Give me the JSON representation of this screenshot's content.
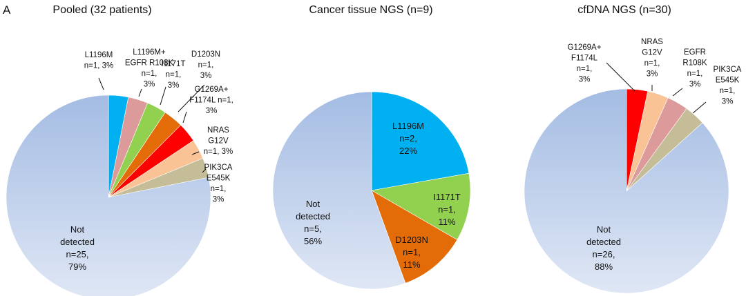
{
  "panel_label": "A",
  "colors": {
    "not_detected_top": "#a4bce3",
    "not_detected_bottom": "#dfe7f5",
    "L1196M": "#00b0f0",
    "L1196M_EGFR": "#dc9a9a",
    "I1171T": "#92d050",
    "D1203N": "#e36c09",
    "G1269A_F1174L": "#ff0000",
    "NRAS": "#f9c396",
    "PIK3CA": "#c4bd97",
    "EGFR": "#dc9a9a"
  },
  "chart_data": [
    {
      "type": "pie",
      "title": "Pooled (32 patients)",
      "total": 32,
      "slices": [
        {
          "name": "L1196M",
          "value": 1,
          "percent": 3,
          "color_key": "L1196M",
          "label_lines": [
            "L1196M",
            "n=1, 3%"
          ]
        },
        {
          "name": "L1196M+ EGFR R108K",
          "value": 1,
          "percent": 3,
          "color_key": "L1196M_EGFR",
          "label_lines": [
            "L1196M+",
            "EGFR R108K",
            "n=1,",
            "3%"
          ]
        },
        {
          "name": "I1171T",
          "value": 1,
          "percent": 3,
          "color_key": "I1171T",
          "label_lines": [
            "I1171T",
            "n=1,",
            "3%"
          ]
        },
        {
          "name": "D1203N",
          "value": 1,
          "percent": 3,
          "color_key": "D1203N",
          "label_lines": [
            "D1203N",
            "n=1,",
            "3%"
          ]
        },
        {
          "name": "G1269A+ F1174L",
          "value": 1,
          "percent": 3,
          "color_key": "G1269A_F1174L",
          "label_lines": [
            "G1269A+",
            "F1174L n=1,",
            "3%"
          ]
        },
        {
          "name": "NRAS G12V",
          "value": 1,
          "percent": 3,
          "color_key": "NRAS",
          "label_lines": [
            "NRAS",
            "G12V",
            "n=1, 3%"
          ]
        },
        {
          "name": "PIK3CA E545K",
          "value": 1,
          "percent": 3,
          "color_key": "PIK3CA",
          "label_lines": [
            "PIK3CA",
            "E545K",
            "n=1,",
            "3%"
          ]
        },
        {
          "name": "Not detected",
          "value": 25,
          "percent": 79,
          "color_key": "not_detected",
          "label_lines": [
            "Not",
            "detected",
            "n=25,",
            "79%"
          ]
        }
      ]
    },
    {
      "type": "pie",
      "title": "Cancer tissue NGS (n=9)",
      "total": 9,
      "slices": [
        {
          "name": "L1196M",
          "value": 2,
          "percent": 22,
          "color_key": "L1196M",
          "label_lines": [
            "L1196M",
            "n=2,",
            "22%"
          ]
        },
        {
          "name": "I1171T",
          "value": 1,
          "percent": 11,
          "color_key": "I1171T",
          "label_lines": [
            "I1171T",
            "n=1,",
            "11%"
          ]
        },
        {
          "name": "D1203N",
          "value": 1,
          "percent": 11,
          "color_key": "D1203N",
          "label_lines": [
            "D1203N",
            "n=1,",
            "11%"
          ]
        },
        {
          "name": "Not detected",
          "value": 5,
          "percent": 56,
          "color_key": "not_detected",
          "label_lines": [
            "Not",
            "detected",
            "n=5,",
            "56%"
          ]
        }
      ]
    },
    {
      "type": "pie",
      "title": "cfDNA NGS (n=30)",
      "total": 30,
      "slices": [
        {
          "name": "G1269A+ F1174L",
          "value": 1,
          "percent": 3,
          "color_key": "G1269A_F1174L",
          "label_lines": [
            "G1269A+",
            "F1174L",
            "n=1,",
            "3%"
          ]
        },
        {
          "name": "NRAS G12V",
          "value": 1,
          "percent": 3,
          "color_key": "NRAS",
          "label_lines": [
            "NRAS",
            "G12V",
            "n=1,",
            "3%"
          ]
        },
        {
          "name": "EGFR R108K",
          "value": 1,
          "percent": 3,
          "color_key": "EGFR",
          "label_lines": [
            "EGFR",
            "R108K",
            "n=1,",
            "3%"
          ]
        },
        {
          "name": "PIK3CA E545K",
          "value": 1,
          "percent": 3,
          "color_key": "PIK3CA",
          "label_lines": [
            "PIK3CA",
            "E545K",
            "n=1,",
            "3%"
          ]
        },
        {
          "name": "Not detected",
          "value": 26,
          "percent": 88,
          "color_key": "not_detected",
          "label_lines": [
            "Not",
            "detected",
            "n=26,",
            "88%"
          ]
        }
      ]
    }
  ]
}
